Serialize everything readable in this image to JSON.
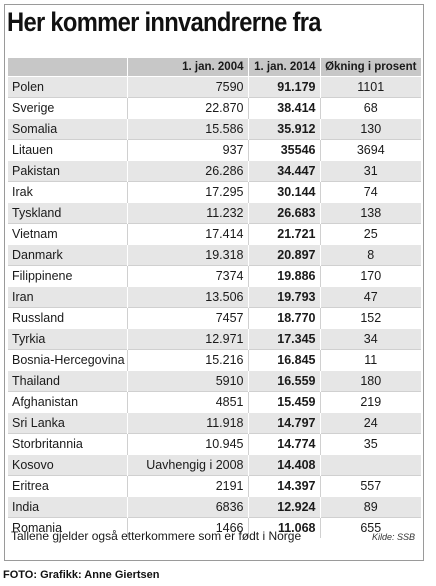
{
  "title": "Her kommer innvandrerne fra",
  "columns": [
    "",
    "1. jan. 2004",
    "1. jan. 2014",
    "Økning i prosent"
  ],
  "rows": [
    {
      "country": "Polen",
      "v2004": "7590",
      "v2014": "91.179",
      "pct": "1101"
    },
    {
      "country": "Sverige",
      "v2004": "22.870",
      "v2014": "38.414",
      "pct": "68"
    },
    {
      "country": "Somalia",
      "v2004": "15.586",
      "v2014": "35.912",
      "pct": "130"
    },
    {
      "country": "Litauen",
      "v2004": "937",
      "v2014": "35546",
      "pct": "3694"
    },
    {
      "country": "Pakistan",
      "v2004": "26.286",
      "v2014": "34.447",
      "pct": "31"
    },
    {
      "country": "Irak",
      "v2004": "17.295",
      "v2014": "30.144",
      "pct": "74"
    },
    {
      "country": "Tyskland",
      "v2004": "11.232",
      "v2014": "26.683",
      "pct": "138"
    },
    {
      "country": "Vietnam",
      "v2004": "17.414",
      "v2014": "21.721",
      "pct": "25"
    },
    {
      "country": "Danmark",
      "v2004": "19.318",
      "v2014": "20.897",
      "pct": "8"
    },
    {
      "country": "Filippinene",
      "v2004": "7374",
      "v2014": "19.886",
      "pct": "170"
    },
    {
      "country": "Iran",
      "v2004": "13.506",
      "v2014": "19.793",
      "pct": "47"
    },
    {
      "country": "Russland",
      "v2004": "7457",
      "v2014": "18.770",
      "pct": "152"
    },
    {
      "country": "Tyrkia",
      "v2004": "12.971",
      "v2014": "17.345",
      "pct": "34"
    },
    {
      "country": "Bosnia-Hercegovina",
      "v2004": "15.216",
      "v2014": "16.845",
      "pct": "11"
    },
    {
      "country": "Thailand",
      "v2004": "5910",
      "v2014": "16.559",
      "pct": "180"
    },
    {
      "country": "Afghanistan",
      "v2004": "4851",
      "v2014": "15.459",
      "pct": "219"
    },
    {
      "country": "Sri Lanka",
      "v2004": "11.918",
      "v2014": "14.797",
      "pct": "24"
    },
    {
      "country": "Storbritannia",
      "v2004": "10.945",
      "v2014": "14.774",
      "pct": "35"
    },
    {
      "country": "Kosovo",
      "v2004": "Uavhengig i 2008",
      "v2014": "14.408",
      "pct": ""
    },
    {
      "country": "Eritrea",
      "v2004": "2191",
      "v2014": "14.397",
      "pct": "557"
    },
    {
      "country": "India",
      "v2004": "6836",
      "v2014": "12.924",
      "pct": "89"
    },
    {
      "country": "Romania",
      "v2004": "1466",
      "v2014": "11.068",
      "pct": "655"
    }
  ],
  "footnote": "Tallene gjelder også etterkommere som er født i Norge",
  "source": "Kilde: SSB",
  "credit": "FOTO: Grafikk: Anne Giertsen",
  "colors": {
    "header_bg": "#c7c7c7",
    "row_shade": "#e6e6e6",
    "top_mark": "#6cb6df"
  }
}
